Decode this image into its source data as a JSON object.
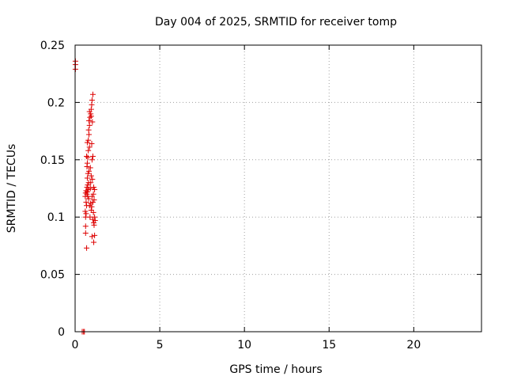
{
  "chart_data": {
    "type": "scatter",
    "title": "Day 004 of 2025, SRMTID for receiver tomp",
    "xlabel": "GPS time / hours",
    "ylabel": "SRMTID / TECUs",
    "xlim": [
      0,
      24
    ],
    "ylim": [
      0,
      0.25
    ],
    "x_ticks": [
      0,
      5,
      10,
      15,
      20
    ],
    "x_tick_labels": [
      "0",
      "5",
      "10",
      "15",
      "20"
    ],
    "y_ticks": [
      0,
      0.05,
      0.1,
      0.15,
      0.2,
      0.25
    ],
    "y_tick_labels": [
      "0",
      "0.05",
      "0.1",
      "0.15",
      "0.2",
      "0.25"
    ],
    "grid": true,
    "legend": "none",
    "marker": "plus",
    "color": "#dd0000",
    "series": [
      {
        "points": [
          [
            0.02,
            0.236
          ],
          [
            0.02,
            0.233
          ],
          [
            0.02,
            0.229
          ],
          [
            0.42,
            0.0
          ],
          [
            0.5,
            0.0
          ],
          [
            0.55,
            0.0
          ],
          [
            0.68,
            0.073
          ],
          [
            0.62,
            0.086
          ],
          [
            0.62,
            0.092
          ],
          [
            0.62,
            0.1
          ],
          [
            0.65,
            0.103
          ],
          [
            0.6,
            0.105
          ],
          [
            0.68,
            0.11
          ],
          [
            0.65,
            0.113
          ],
          [
            0.6,
            0.118
          ],
          [
            0.7,
            0.12
          ],
          [
            0.62,
            0.121
          ],
          [
            0.72,
            0.122
          ],
          [
            0.65,
            0.123
          ],
          [
            0.78,
            0.124
          ],
          [
            0.7,
            0.126
          ],
          [
            0.74,
            0.128
          ],
          [
            0.8,
            0.13
          ],
          [
            0.72,
            0.134
          ],
          [
            0.76,
            0.138
          ],
          [
            0.82,
            0.14
          ],
          [
            0.7,
            0.144
          ],
          [
            0.72,
            0.147
          ],
          [
            0.75,
            0.152
          ],
          [
            0.68,
            0.153
          ],
          [
            0.78,
            0.158
          ],
          [
            0.85,
            0.161
          ],
          [
            0.72,
            0.165
          ],
          [
            0.78,
            0.167
          ],
          [
            0.82,
            0.172
          ],
          [
            0.8,
            0.176
          ],
          [
            0.85,
            0.18
          ],
          [
            0.82,
            0.184
          ],
          [
            0.88,
            0.187
          ],
          [
            0.92,
            0.19
          ],
          [
            0.85,
            0.192
          ],
          [
            0.95,
            0.194
          ],
          [
            0.98,
            0.198
          ],
          [
            1.0,
            0.202
          ],
          [
            1.05,
            0.207
          ],
          [
            0.95,
            0.188
          ],
          [
            1.02,
            0.183
          ],
          [
            0.98,
            0.164
          ],
          [
            1.05,
            0.153
          ],
          [
            1.0,
            0.15
          ],
          [
            0.9,
            0.143
          ],
          [
            0.95,
            0.136
          ],
          [
            1.02,
            0.133
          ],
          [
            1.1,
            0.126
          ],
          [
            1.15,
            0.124
          ],
          [
            1.08,
            0.12
          ],
          [
            1.0,
            0.118
          ],
          [
            1.12,
            0.115
          ],
          [
            1.05,
            0.113
          ],
          [
            0.92,
            0.112
          ],
          [
            0.98,
            0.109
          ],
          [
            0.95,
            0.106
          ],
          [
            1.08,
            0.104
          ],
          [
            1.15,
            0.1
          ],
          [
            1.05,
            0.098
          ],
          [
            1.18,
            0.097
          ],
          [
            1.1,
            0.095
          ],
          [
            1.12,
            0.093
          ],
          [
            1.15,
            0.084
          ],
          [
            1.0,
            0.083
          ],
          [
            1.1,
            0.078
          ],
          [
            0.85,
            0.11
          ],
          [
            0.88,
            0.1
          ],
          [
            0.75,
            0.118
          ],
          [
            0.8,
            0.116
          ],
          [
            0.9,
            0.125
          ],
          [
            0.92,
            0.13
          ]
        ]
      }
    ]
  }
}
